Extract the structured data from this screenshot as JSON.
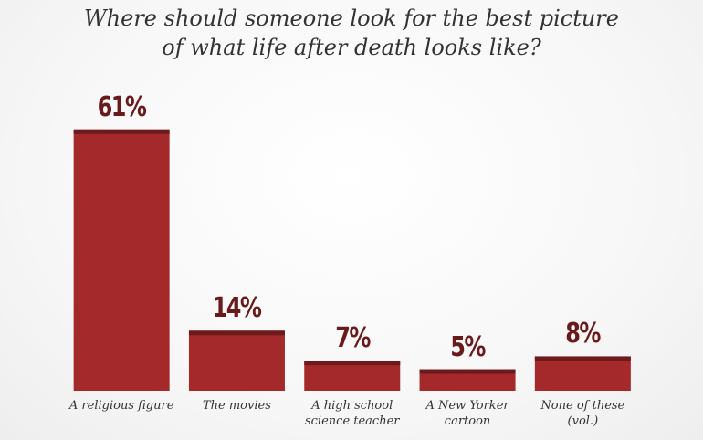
{
  "chart_data": {
    "type": "bar",
    "title": [
      "Where should someone look for the best picture",
      "of what life after death looks like?"
    ],
    "categories": [
      "A religious figure",
      "The movies",
      "A high school science teacher",
      "A New Yorker cartoon",
      "None of these (vol.)"
    ],
    "values": [
      61,
      14,
      7,
      5,
      8
    ],
    "value_labels": [
      "61%",
      "14%",
      "7%",
      "5%",
      "8%"
    ],
    "color": "#a3292b",
    "ylim": [
      0,
      65
    ]
  }
}
